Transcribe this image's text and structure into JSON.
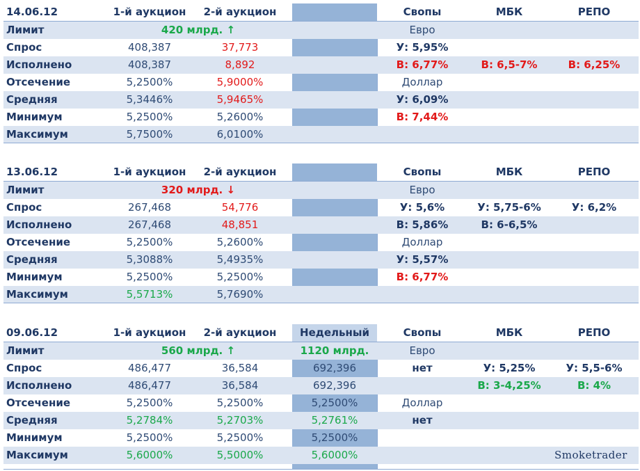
{
  "colors": {
    "band": "#dbe4f1",
    "blue_column": "#95b3d7",
    "text": "#1f3864",
    "red": "#e21a1a",
    "green": "#1aa84a"
  },
  "blocks": [
    {
      "date": "14.06.12",
      "headers": {
        "a1": "1-й аукцион",
        "a2": "2-й аукцион",
        "weekly": "",
        "swaps": "Свопы",
        "mbk": "МБК",
        "repo": "РЕПО"
      },
      "limit": {
        "label": "Лимит",
        "value": "420 млрд.",
        "arrow": "↑",
        "weekly": "",
        "swap_text": "Евро"
      },
      "rows": [
        {
          "label": "Спрос",
          "a1": "408,387",
          "a2": "37,773",
          "weekly": "",
          "swap": "У: 5,95%",
          "mbk": "",
          "repo": ""
        },
        {
          "label": "Исполнено",
          "a1": "408,387",
          "a2": "8,892",
          "weekly": "",
          "swap": "В: 6,77%",
          "mbk": "В: 6,5-7%",
          "repo": "В: 6,25%"
        },
        {
          "label": "Отсечение",
          "a1": "5,2500%",
          "a2": "5,9000%",
          "weekly": "",
          "swap": "Доллар",
          "mbk": "",
          "repo": ""
        },
        {
          "label": "Средняя",
          "a1": "5,3446%",
          "a2": "5,9465%",
          "weekly": "",
          "swap": "У: 6,09%",
          "mbk": "",
          "repo": ""
        },
        {
          "label": "Минимум",
          "a1": "5,2500%",
          "a2": "5,2600%",
          "weekly": "",
          "swap": "В: 7,44%",
          "mbk": "",
          "repo": ""
        },
        {
          "label": "Максимум",
          "a1": "5,7500%",
          "a2": "6,0100%",
          "weekly": "",
          "swap": "",
          "mbk": "",
          "repo": ""
        }
      ]
    },
    {
      "date": "13.06.12",
      "headers": {
        "a1": "1-й аукцион",
        "a2": "2-й аукцион",
        "weekly": "",
        "swaps": "Свопы",
        "mbk": "МБК",
        "repo": "РЕПО"
      },
      "limit": {
        "label": "Лимит",
        "value": "320 млрд.",
        "arrow": "↓",
        "weekly": "",
        "swap_text": "Евро"
      },
      "rows": [
        {
          "label": "Спрос",
          "a1": "267,468",
          "a2": "54,776",
          "weekly": "",
          "swap": "У: 5,6%",
          "mbk": "У: 5,75-6%",
          "repo": "У: 6,2%"
        },
        {
          "label": "Исполнено",
          "a1": "267,468",
          "a2": "48,851",
          "weekly": "",
          "swap": "В: 5,86%",
          "mbk": "В: 6-6,5%",
          "repo": ""
        },
        {
          "label": "Отсечение",
          "a1": "5,2500%",
          "a2": "5,2600%",
          "weekly": "",
          "swap": "Доллар",
          "mbk": "",
          "repo": ""
        },
        {
          "label": "Средняя",
          "a1": "5,3088%",
          "a2": "5,4935%",
          "weekly": "",
          "swap": "У: 5,57%",
          "mbk": "",
          "repo": ""
        },
        {
          "label": "Минимум",
          "a1": "5,2500%",
          "a2": "5,2500%",
          "weekly": "",
          "swap": "В: 6,77%",
          "mbk": "",
          "repo": ""
        },
        {
          "label": "Максимум",
          "a1": "5,5713%",
          "a2": "5,7690%",
          "weekly": "",
          "swap": "",
          "mbk": "",
          "repo": ""
        }
      ]
    },
    {
      "date": "09.06.12",
      "headers": {
        "a1": "1-й аукцион",
        "a2": "2-й аукцион",
        "weekly": "Недельный",
        "swaps": "Свопы",
        "mbk": "МБК",
        "repo": "РЕПО"
      },
      "limit": {
        "label": "Лимит",
        "value": "560 млрд.",
        "arrow": "↑",
        "weekly": "1120 млрд.",
        "swap_text": "Евро"
      },
      "rows": [
        {
          "label": "Спрос",
          "a1": "486,477",
          "a2": "36,584",
          "weekly": "692,396",
          "swap": "нет",
          "mbk": "У: 5,25%",
          "repo": "У: 5,5-6%"
        },
        {
          "label": "Исполнено",
          "a1": "486,477",
          "a2": "36,584",
          "weekly": "692,396",
          "swap": "",
          "mbk": "В: 3-4,25%",
          "repo": "В: 4%"
        },
        {
          "label": "Отсечение",
          "a1": "5,2500%",
          "a2": "5,2500%",
          "weekly": "5,2500%",
          "swap": "Доллар",
          "mbk": "",
          "repo": ""
        },
        {
          "label": "Средняя",
          "a1": "5,2784%",
          "a2": "5,2703%",
          "weekly": "5,2761%",
          "swap": "нет",
          "mbk": "",
          "repo": ""
        },
        {
          "label": "Минимум",
          "a1": "5,2500%",
          "a2": "5,2500%",
          "weekly": "5,2500%",
          "swap": "",
          "mbk": "",
          "repo": ""
        },
        {
          "label": "Максимум",
          "a1": "5,6000%",
          "a2": "5,5000%",
          "weekly": "5,6000%",
          "swap": "",
          "mbk": "",
          "repo": ""
        }
      ]
    }
  ],
  "signature": "Smoketrader"
}
